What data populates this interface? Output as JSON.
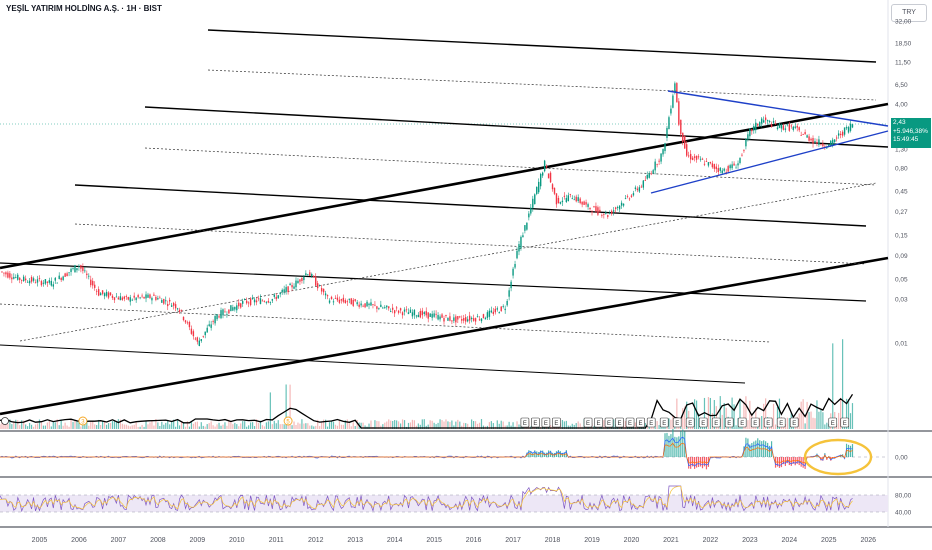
{
  "header": {
    "title": "YEŞİL YATIRIM HOLDİNG A.Ş. · 1H · BIST",
    "currency": "TRY"
  },
  "price_badge": {
    "price": "2,43",
    "change": "+5.946,38%",
    "countdown": "15:49:45"
  },
  "colors": {
    "up": "#089981",
    "down": "#f23645",
    "triangle": "#1e40c8",
    "annotation": "#f5c33b",
    "rsi_band": "#ede7f6"
  },
  "chart_data": [
    {
      "type": "line",
      "panel": "price",
      "y_scale": "log",
      "y_ticks": [
        "32,00",
        "18,50",
        "11,50",
        "6,50",
        "4,00",
        "1,30",
        "0,80",
        "0,45",
        "0,27",
        "0,15",
        "0,09",
        "0,05",
        "0,03",
        "0,01"
      ],
      "x_ticks": [
        "2005",
        "2006",
        "2007",
        "2008",
        "2009",
        "2010",
        "2011",
        "2012",
        "2013",
        "2014",
        "2015",
        "2016",
        "2017",
        "2018",
        "2019",
        "2020",
        "2021",
        "2022",
        "2023",
        "2024",
        "2025",
        "2026"
      ],
      "series": [
        {
          "x": [
            2004.0,
            2004.5,
            2005.3,
            2006.0,
            2006.5,
            2007.2,
            2007.9,
            2008.5,
            2009.0,
            2009.5,
            2010.2,
            2010.9,
            2011.5,
            2011.8,
            2012.3,
            2012.9,
            2013.5,
            2014.2,
            2014.9,
            2015.5,
            2016.2,
            2016.8,
            2017.1,
            2017.4,
            2017.8,
            2018.1,
            2018.5,
            2018.9,
            2019.4,
            2019.9,
            2020.3,
            2020.8,
            2021.1,
            2021.2,
            2021.4,
            2021.8,
            2022.3,
            2022.7,
            2023.0,
            2023.3,
            2023.7,
            2024.1,
            2024.6,
            2025.0,
            2025.3,
            2025.6
          ],
          "values": [
            0.06,
            0.05,
            0.045,
            0.07,
            0.035,
            0.03,
            0.032,
            0.025,
            0.01,
            0.02,
            0.028,
            0.03,
            0.045,
            0.06,
            0.03,
            0.028,
            0.025,
            0.022,
            0.02,
            0.018,
            0.019,
            0.025,
            0.1,
            0.25,
            0.9,
            0.35,
            0.4,
            0.3,
            0.25,
            0.38,
            0.55,
            1.2,
            7.0,
            2.5,
            1.1,
            0.95,
            0.75,
            0.9,
            2.0,
            2.7,
            2.3,
            2.2,
            1.6,
            1.4,
            1.9,
            2.43
          ]
        }
      ],
      "annotations": [
        "2,43",
        "+5.946,38%",
        "15:49:45"
      ]
    },
    {
      "type": "bar",
      "panel": "volume",
      "labels": [
        "E",
        "E",
        "E",
        "E",
        "E",
        "E",
        "E",
        "E",
        "E",
        "E",
        "E",
        "E",
        "E",
        "E",
        "E",
        "E",
        "E",
        "E",
        "E",
        "E",
        "E",
        "E",
        "E",
        "E"
      ],
      "markers": [
        "3",
        "5"
      ]
    },
    {
      "type": "line",
      "panel": "macd",
      "y_ticks": [
        "0,00"
      ]
    },
    {
      "type": "line",
      "panel": "rsi",
      "y_ticks": [
        "80,00",
        "40,00"
      ]
    }
  ]
}
